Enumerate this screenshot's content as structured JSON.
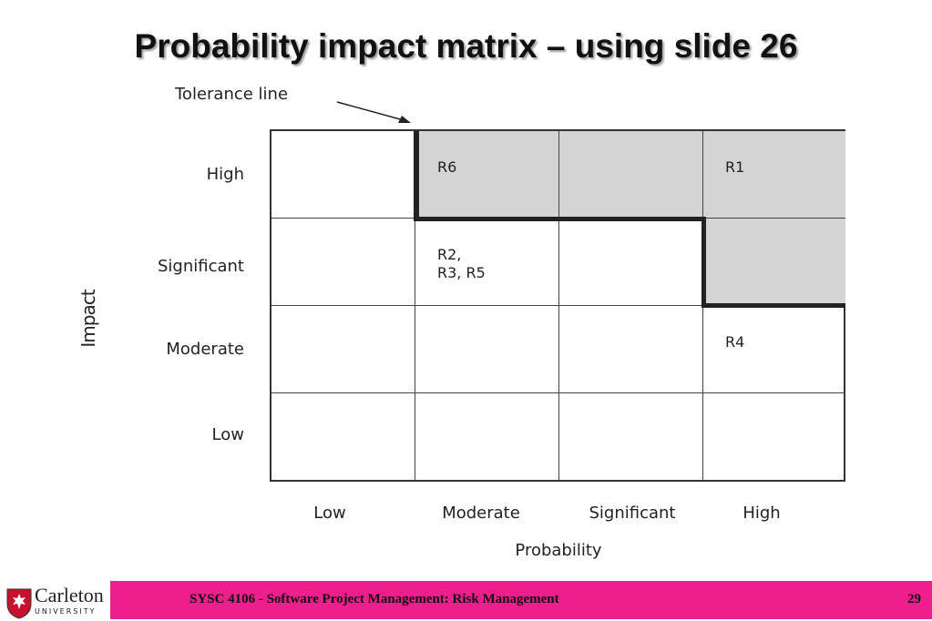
{
  "slide": {
    "title": "Probability impact matrix – using slide 26",
    "footer_text": "SYSC 4106 - Software Project Management: Risk Management",
    "page_number": "29"
  },
  "logo": {
    "name": "Carleton",
    "subtitle": "UNIVERSITY"
  },
  "chart_data": {
    "type": "table",
    "tolerance_label": "Tolerance line",
    "y_axis_label": "Impact",
    "x_axis_label": "Probability",
    "rows": [
      "High",
      "Significant",
      "Moderate",
      "Low"
    ],
    "columns": [
      "Low",
      "Moderate",
      "Significant",
      "High"
    ],
    "cells": [
      [
        "",
        "R6",
        "",
        "R1"
      ],
      [
        "",
        "R2,\nR3, R5",
        "",
        ""
      ],
      [
        "",
        "",
        "",
        "R4"
      ],
      [
        "",
        "",
        "",
        ""
      ]
    ],
    "shaded": [
      [
        false,
        true,
        true,
        true
      ],
      [
        false,
        false,
        false,
        true
      ],
      [
        false,
        false,
        false,
        false
      ],
      [
        false,
        false,
        false,
        false
      ]
    ],
    "colors": {
      "shaded": "#d4d4d4",
      "footer": "#ec1f8c"
    }
  }
}
